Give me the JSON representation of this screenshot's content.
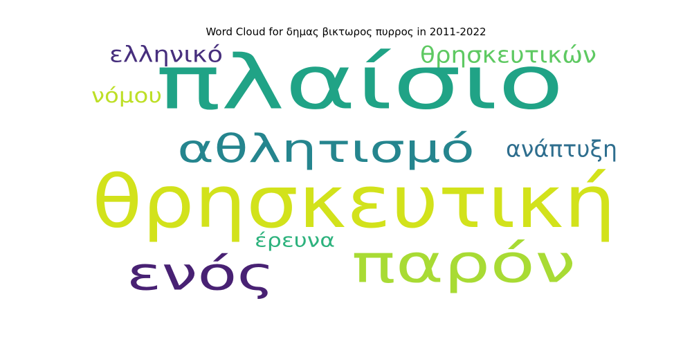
{
  "chart_data": {
    "type": "wordcloud",
    "title": "Word Cloud for δημας βικτωρος πυρρος in 2011-2022",
    "words": [
      {
        "text": "πλαίσιο",
        "weight": 1.0,
        "color": "#20a386"
      },
      {
        "text": "θρησκευτική",
        "weight": 0.85,
        "color": "#d2e21b"
      },
      {
        "text": "παρόν",
        "weight": 0.75,
        "color": "#a8db34"
      },
      {
        "text": "ενός",
        "weight": 0.62,
        "color": "#482173"
      },
      {
        "text": "αθλητισμό",
        "weight": 0.55,
        "color": "#25858e"
      },
      {
        "text": "ελληνικό",
        "weight": 0.3,
        "color": "#472f7d"
      },
      {
        "text": "θρησκευτικών",
        "weight": 0.3,
        "color": "#5ec962"
      },
      {
        "text": "ανάπτυξη",
        "weight": 0.28,
        "color": "#2e6e8e"
      },
      {
        "text": "νόμου",
        "weight": 0.27,
        "color": "#bddf26"
      },
      {
        "text": "έρευνα",
        "weight": 0.26,
        "color": "#2db27d"
      }
    ]
  }
}
